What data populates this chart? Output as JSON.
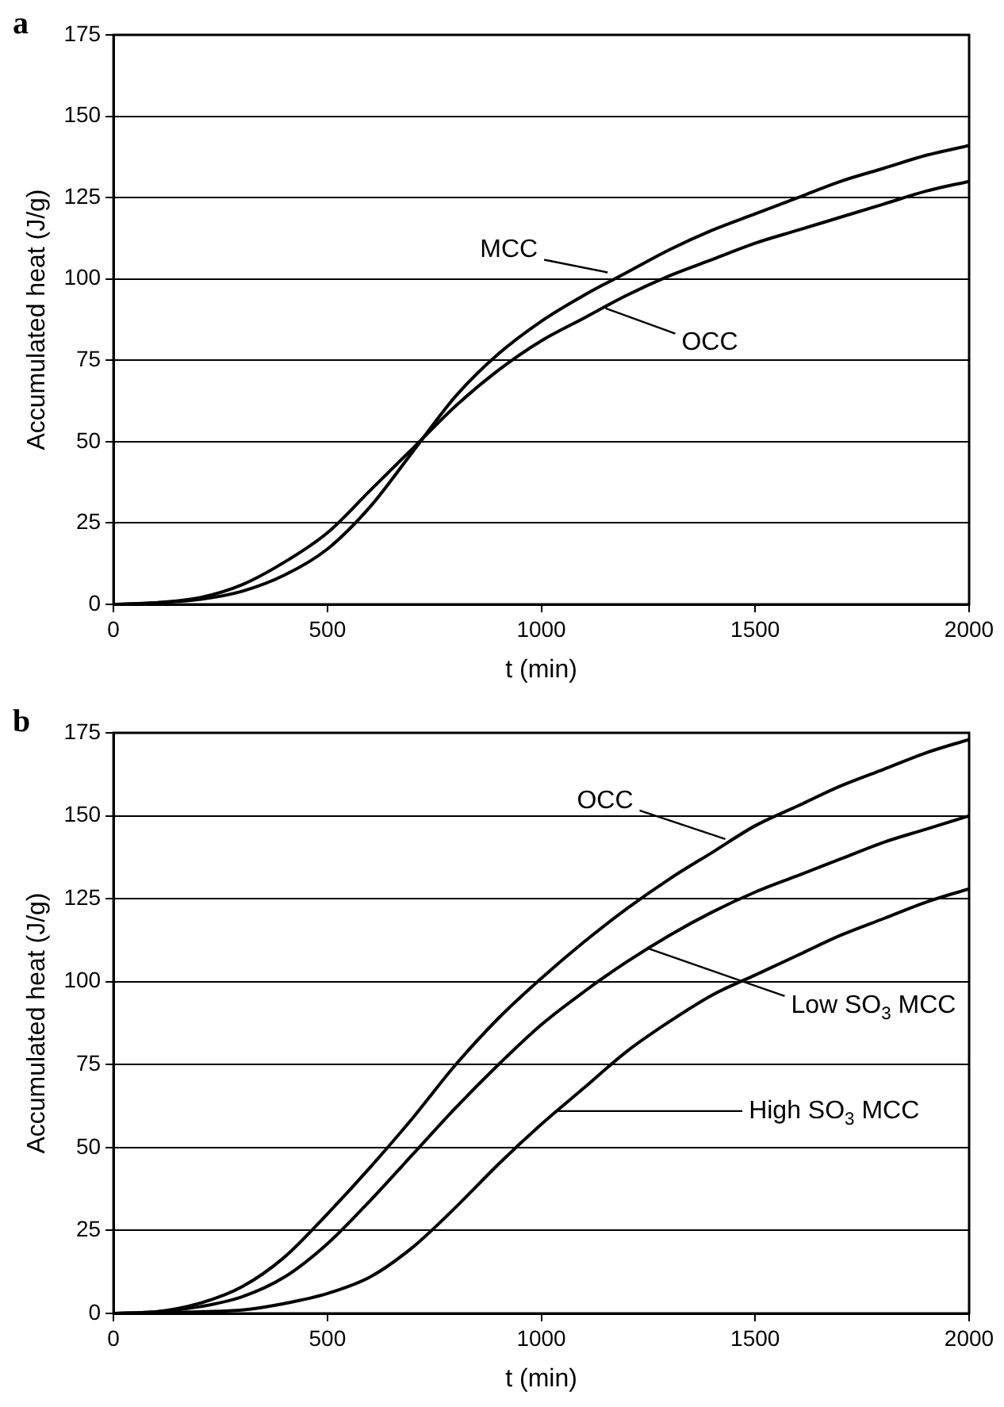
{
  "chart_data": [
    {
      "type": "line",
      "title": "a",
      "xlabel": "t (min)",
      "ylabel": "Accumulated heat (J/g)",
      "x": [
        0,
        100,
        200,
        300,
        400,
        500,
        600,
        700,
        800,
        900,
        1000,
        1100,
        1200,
        1300,
        1400,
        1500,
        1600,
        1700,
        1800,
        1900,
        2000
      ],
      "series": [
        {
          "color": "#000000",
          "values": [
            0,
            0.5,
            1.5,
            4,
            9,
            17,
            30,
            47,
            64,
            77,
            87,
            95,
            102,
            109,
            115,
            120,
            125,
            130,
            134,
            138,
            141
          ]
        },
        {
          "color": "#000000",
          "values": [
            0,
            0.5,
            2,
            6,
            13,
            22,
            35,
            48,
            61,
            72,
            81,
            88,
            95,
            101,
            106,
            111,
            115,
            119,
            123,
            127,
            130
          ]
        }
      ],
      "annotations": [
        {
          "text": "MCC",
          "x": 1155,
          "y": 102
        },
        {
          "text": "OCC",
          "x": 1150,
          "y": 91
        }
      ],
      "xlim": [
        0,
        2000
      ],
      "xticks": [
        0,
        500,
        1000,
        1500,
        2000
      ],
      "ylim": [
        0,
        175
      ],
      "yticks": [
        0,
        25,
        50,
        75,
        100,
        125,
        150,
        175
      ],
      "grid": "y",
      "legend": false,
      "marker": "none",
      "line_style": "solid"
    },
    {
      "type": "line",
      "title": "b",
      "xlabel": "t (min)",
      "ylabel": "Accumulated heat (J/g)",
      "x": [
        0,
        100,
        200,
        300,
        400,
        500,
        600,
        700,
        800,
        900,
        1000,
        1100,
        1200,
        1300,
        1400,
        1500,
        1600,
        1700,
        1800,
        1900,
        2000
      ],
      "series": [
        {
          "color": "#000000",
          "values": [
            0,
            0.5,
            3,
            8,
            17,
            30,
            44,
            59,
            75,
            89,
            101,
            112,
            122,
            131,
            139,
            147,
            153,
            159,
            164,
            169,
            173
          ]
        },
        {
          "color": "#000000",
          "values": [
            0,
            0.5,
            2,
            5,
            11,
            21,
            34,
            48,
            62,
            75,
            87,
            97,
            106,
            114,
            121,
            127,
            132,
            137,
            142,
            146,
            150
          ]
        },
        {
          "color": "#000000",
          "values": [
            0,
            0.2,
            0.5,
            1,
            3,
            6,
            11,
            20,
            32,
            45,
            57,
            68,
            79,
            88,
            96,
            102,
            108,
            114,
            119,
            124,
            128
          ]
        }
      ],
      "annotations": [
        {
          "text": "OCC",
          "x": 1430,
          "y": 143
        },
        {
          "text": "Low SO$_{3}$ MCC",
          "x": 1250,
          "y": 110
        },
        {
          "text": "High SO$_{3}$ MCC",
          "x": 1040,
          "y": 61
        }
      ],
      "xlim": [
        0,
        2000
      ],
      "xticks": [
        0,
        500,
        1000,
        1500,
        2000
      ],
      "ylim": [
        0,
        175
      ],
      "yticks": [
        0,
        25,
        50,
        75,
        100,
        125,
        150,
        175
      ],
      "grid": "y",
      "legend": false,
      "marker": "none",
      "line_style": "solid"
    }
  ]
}
